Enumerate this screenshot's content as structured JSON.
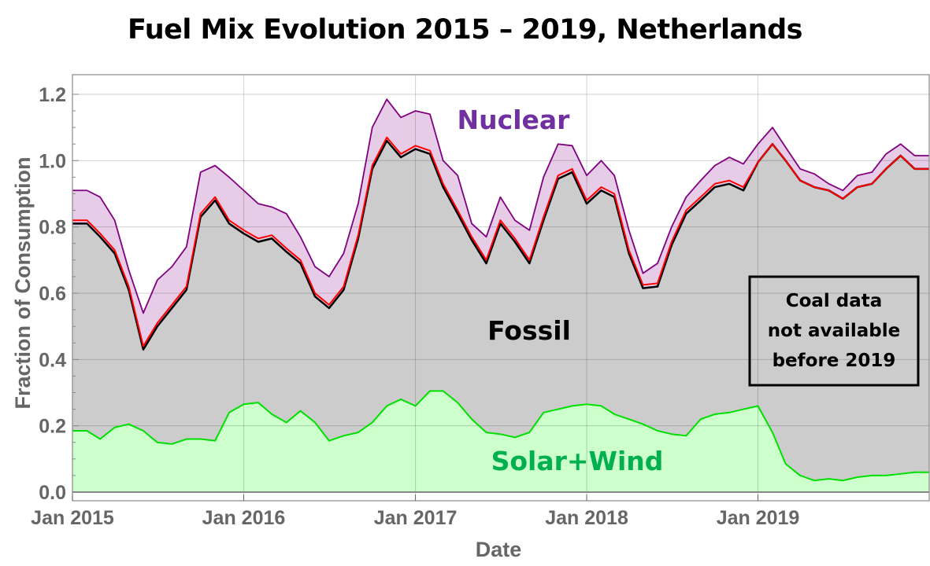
{
  "chart_data": {
    "type": "area",
    "title": "Fuel Mix Evolution 2015 – 2019, Netherlands",
    "xlabel": "Date",
    "ylabel": "Fraction of Consumption",
    "xlim": [
      "2015-01-01",
      "2020-01-01"
    ],
    "ylim": [
      0,
      1.26
    ],
    "grid": true,
    "x_ticks": [
      {
        "date": "2015-01-01",
        "label": "Jan 2015"
      },
      {
        "date": "2016-01-01",
        "label": "Jan 2016"
      },
      {
        "date": "2017-01-01",
        "label": "Jan 2017"
      },
      {
        "date": "2018-01-01",
        "label": "Jan 2018"
      },
      {
        "date": "2019-01-01",
        "label": "Jan 2019"
      }
    ],
    "y_ticks": [
      "0.0",
      "0.2",
      "0.4",
      "0.6",
      "0.8",
      "1.0",
      "1.2"
    ],
    "x": [
      "2015-01-01",
      "2015-02-01",
      "2015-03-01",
      "2015-04-01",
      "2015-05-01",
      "2015-06-01",
      "2015-07-01",
      "2015-08-01",
      "2015-09-01",
      "2015-10-01",
      "2015-11-01",
      "2015-12-01",
      "2016-01-01",
      "2016-02-01",
      "2016-03-01",
      "2016-04-01",
      "2016-05-01",
      "2016-06-01",
      "2016-07-01",
      "2016-08-01",
      "2016-09-01",
      "2016-10-01",
      "2016-11-01",
      "2016-12-01",
      "2017-01-01",
      "2017-02-01",
      "2017-03-01",
      "2017-04-01",
      "2017-05-01",
      "2017-06-01",
      "2017-07-01",
      "2017-08-01",
      "2017-09-01",
      "2017-10-01",
      "2017-11-01",
      "2017-12-01",
      "2018-01-01",
      "2018-02-01",
      "2018-03-01",
      "2018-04-01",
      "2018-05-01",
      "2018-06-01",
      "2018-07-01",
      "2018-08-01",
      "2018-09-01",
      "2018-10-01",
      "2018-11-01",
      "2018-12-01",
      "2019-01-01",
      "2019-02-01",
      "2019-03-01",
      "2019-04-01",
      "2019-05-01",
      "2019-06-01",
      "2019-07-01",
      "2019-08-01",
      "2019-09-01",
      "2019-10-01",
      "2019-11-01",
      "2019-12-01",
      "2020-01-01"
    ],
    "series": [
      {
        "key": "solar_wind",
        "color": "#00e000",
        "fill": "#ccffcc",
        "values": [
          0.185,
          0.185,
          0.16,
          0.195,
          0.205,
          0.185,
          0.15,
          0.145,
          0.16,
          0.16,
          0.155,
          0.24,
          0.265,
          0.27,
          0.235,
          0.21,
          0.245,
          0.21,
          0.155,
          0.17,
          0.18,
          0.21,
          0.26,
          0.28,
          0.26,
          0.305,
          0.305,
          0.27,
          0.22,
          0.18,
          0.175,
          0.165,
          0.18,
          0.24,
          0.25,
          0.26,
          0.265,
          0.26,
          0.235,
          0.22,
          0.205,
          0.185,
          0.175,
          0.17,
          0.22,
          0.235,
          0.24,
          0.25,
          0.26,
          0.18,
          0.085,
          0.05,
          0.035,
          0.04,
          0.035,
          0.045,
          0.05,
          0.05,
          0.055,
          0.06,
          0.06
        ]
      },
      {
        "key": "fossil",
        "color": "#000000",
        "fill": "#cccccc",
        "values": [
          0.81,
          0.81,
          0.77,
          0.72,
          0.61,
          0.43,
          0.5,
          0.555,
          0.61,
          0.83,
          0.88,
          0.81,
          0.78,
          0.755,
          0.765,
          0.725,
          0.69,
          0.59,
          0.555,
          0.61,
          0.765,
          0.975,
          1.06,
          1.01,
          1.035,
          1.02,
          0.92,
          0.84,
          0.76,
          0.69,
          0.81,
          0.755,
          0.69,
          0.82,
          0.945,
          0.965,
          0.87,
          0.91,
          0.89,
          0.72,
          0.615,
          0.62,
          0.745,
          0.84,
          0.88,
          0.92,
          0.93,
          0.91,
          0.995,
          1.05,
          1.0,
          0.94,
          0.92,
          0.91,
          0.885,
          0.92,
          0.93,
          0.975,
          1.015,
          0.975,
          0.975
        ]
      },
      {
        "key": "fossil_plus_other",
        "color": "#ff0000",
        "values": [
          0.82,
          0.82,
          0.78,
          0.73,
          0.62,
          0.44,
          0.51,
          0.565,
          0.62,
          0.84,
          0.89,
          0.82,
          0.79,
          0.765,
          0.775,
          0.735,
          0.7,
          0.6,
          0.565,
          0.62,
          0.775,
          0.985,
          1.07,
          1.02,
          1.045,
          1.03,
          0.93,
          0.85,
          0.77,
          0.7,
          0.82,
          0.765,
          0.7,
          0.83,
          0.955,
          0.975,
          0.88,
          0.92,
          0.9,
          0.73,
          0.625,
          0.63,
          0.755,
          0.85,
          0.89,
          0.93,
          0.94,
          0.92,
          0.995,
          1.05,
          1.0,
          0.94,
          0.92,
          0.91,
          0.885,
          0.92,
          0.93,
          0.975,
          1.015,
          0.975,
          0.975
        ]
      },
      {
        "key": "nuclear_total",
        "color": "#800080",
        "fill": "#e6cce6",
        "values": [
          0.91,
          0.91,
          0.89,
          0.82,
          0.67,
          0.54,
          0.64,
          0.68,
          0.74,
          0.965,
          0.985,
          0.95,
          0.91,
          0.87,
          0.86,
          0.84,
          0.77,
          0.68,
          0.65,
          0.72,
          0.87,
          1.1,
          1.185,
          1.13,
          1.15,
          1.14,
          1.0,
          0.955,
          0.81,
          0.77,
          0.89,
          0.82,
          0.79,
          0.95,
          1.05,
          1.045,
          0.955,
          1.0,
          0.955,
          0.79,
          0.66,
          0.69,
          0.8,
          0.89,
          0.94,
          0.985,
          1.01,
          0.99,
          1.05,
          1.1,
          1.04,
          0.975,
          0.96,
          0.93,
          0.91,
          0.955,
          0.965,
          1.02,
          1.05,
          1.015,
          1.015
        ]
      }
    ],
    "annotations": {
      "nuclear": {
        "text": "Nuclear",
        "color": "#7030a0"
      },
      "fossil": {
        "text": "Fossil",
        "color": "#000000"
      },
      "solar_wind": {
        "text": "Solar+Wind",
        "color": "#00b050"
      },
      "note_lines": [
        "Coal data",
        "not available",
        "before 2019"
      ]
    }
  }
}
